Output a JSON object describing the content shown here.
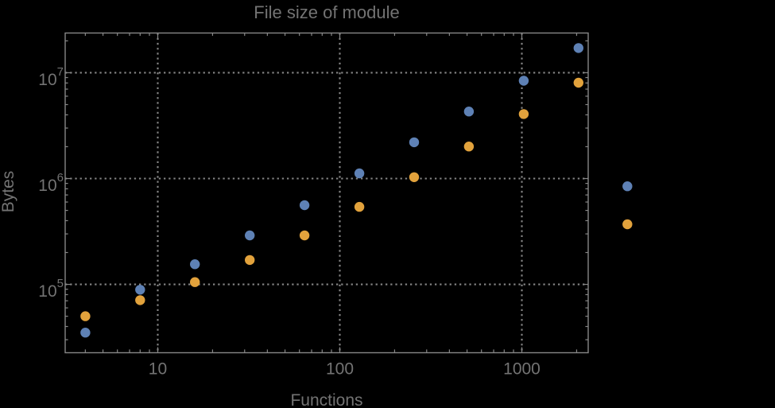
{
  "title": "File size of module",
  "colors": {
    "background": "#000000",
    "frame": "#878787",
    "grid": "#858585",
    "text": "#737373",
    "series_blue": "#5E81B5",
    "series_orange": "#E2A23C"
  },
  "chart_data": {
    "type": "scatter",
    "title": "File size of module",
    "xlabel": "Functions",
    "ylabel": "Bytes",
    "x_scale": "log",
    "y_scale": "log",
    "xlim": [
      3.1,
      2315
    ],
    "ylim": [
      22800,
      23730000
    ],
    "grid": "dotted major decades",
    "legend": "none",
    "marker": "filled-circle",
    "x_major_ticks": [
      {
        "value": 10,
        "label": "10"
      },
      {
        "value": 100,
        "label": "100"
      },
      {
        "value": 1000,
        "label": "1000"
      }
    ],
    "y_major_ticks": [
      {
        "value": 100000,
        "base": "10",
        "exp": "5"
      },
      {
        "value": 1000000,
        "base": "10",
        "exp": "6"
      },
      {
        "value": 10000000,
        "base": "10",
        "exp": "7"
      }
    ],
    "x": [
      4,
      8,
      16,
      32,
      64,
      128,
      256,
      512,
      1024,
      2048,
      3800
    ],
    "series": [
      {
        "name": "series-blue",
        "color": "#5E81B5",
        "y": [
          35000,
          89000,
          155000,
          290000,
          560000,
          1120000,
          2200000,
          4300000,
          8400000,
          17100000,
          845000
        ]
      },
      {
        "name": "series-orange",
        "color": "#E2A23C",
        "y": [
          50000,
          71000,
          105000,
          170000,
          290000,
          540000,
          1030000,
          2010000,
          4070000,
          8050000,
          370000
        ]
      }
    ],
    "note": "last pair of points (x~3800) is rendered outside the plot frame on the right"
  }
}
